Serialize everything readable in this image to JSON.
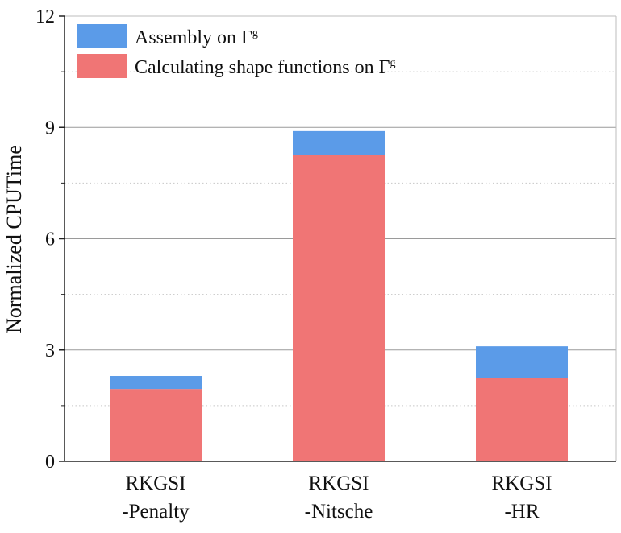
{
  "chart_data": {
    "type": "bar",
    "stacked": true,
    "title": "",
    "xlabel": "",
    "ylabel": "Normalized CPUTime",
    "ylim": [
      0,
      12
    ],
    "yticks": [
      0,
      3,
      6,
      9,
      12
    ],
    "grid": "horizontal dotted",
    "legend_position": "top-left",
    "categories": [
      {
        "line1": "RKGSI",
        "line2": "-Penalty"
      },
      {
        "line1": "RKGSI",
        "line2": "-Nitsche"
      },
      {
        "line1": "RKGSI",
        "line2": "-HR"
      }
    ],
    "series": [
      {
        "name": "Calculating shape functions on Γ",
        "name_sup": "g",
        "color": "#f07575",
        "values": [
          1.95,
          8.25,
          2.25
        ]
      },
      {
        "name": "Assembly on Γ",
        "name_sup": "g",
        "color": "#5b9be8",
        "values": [
          0.35,
          0.65,
          0.85
        ]
      }
    ],
    "legend_order": [
      1,
      0
    ]
  }
}
